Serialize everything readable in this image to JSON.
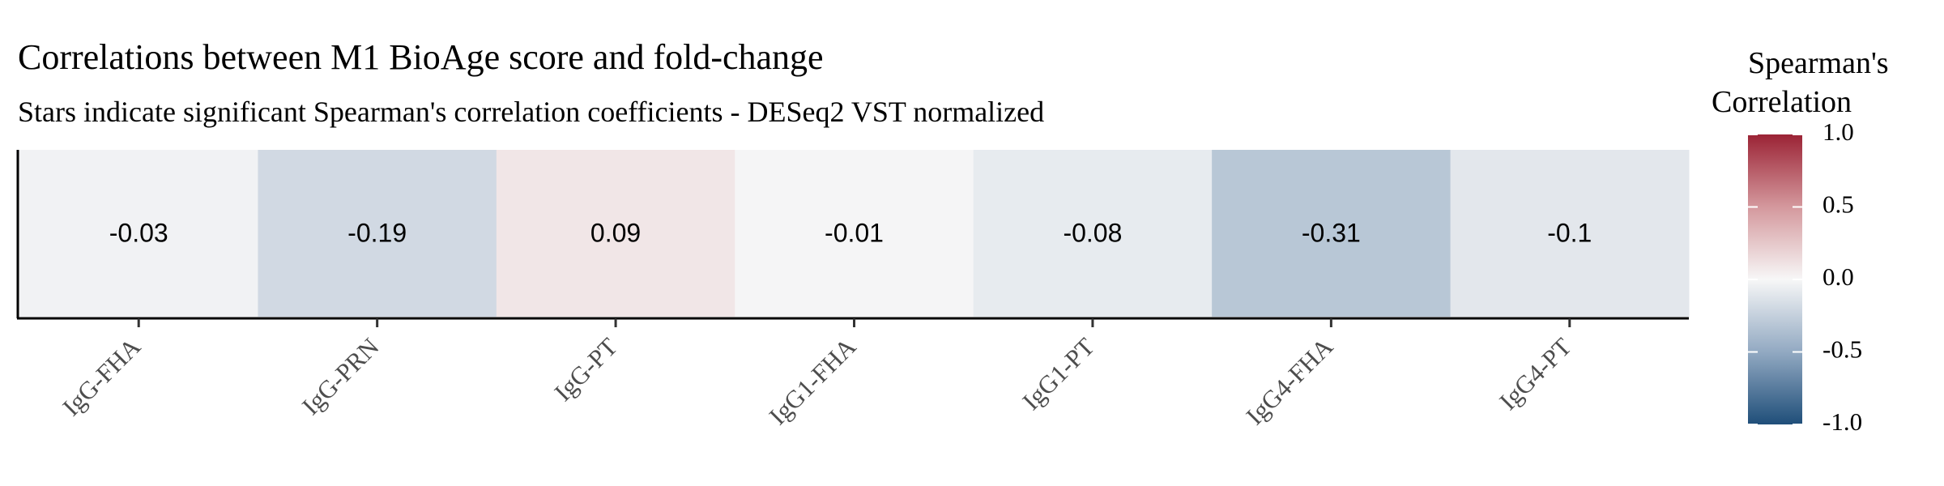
{
  "chart_data": {
    "type": "heatmap",
    "title": "Correlations between M1 BioAge score and fold-change",
    "subtitle": "Stars indicate significant Spearman's correlation coefficients - DESeq2 VST normalized",
    "xlabel": "",
    "ylabel": "",
    "categories": [
      "IgG-FHA",
      "IgG-PRN",
      "IgG-PT",
      "IgG1-FHA",
      "IgG1-PT",
      "IgG4-FHA",
      "IgG4-PT"
    ],
    "values": [
      -0.03,
      -0.19,
      0.09,
      -0.01,
      -0.08,
      -0.31,
      -0.1
    ],
    "cell_labels": [
      "-0.03",
      "-0.19",
      "0.09",
      "-0.01",
      "-0.08",
      "-0.31",
      "-0.1"
    ],
    "legend": {
      "title_lines": [
        "Spearman's",
        "Correlation"
      ],
      "range": [
        -1.0,
        1.0
      ],
      "ticks": [
        1.0,
        0.5,
        0.0,
        -0.5,
        -1.0
      ],
      "tick_labels": [
        "1.0",
        "0.5",
        "0.0",
        "-0.5",
        "-1.0"
      ],
      "placement": "right"
    },
    "colors": {
      "low": "#1f4e79",
      "mid_low": "#92a9c2",
      "mid": "#f7f7f7",
      "mid_high": "#d4989d",
      "high": "#9b2335"
    },
    "grid": false
  }
}
